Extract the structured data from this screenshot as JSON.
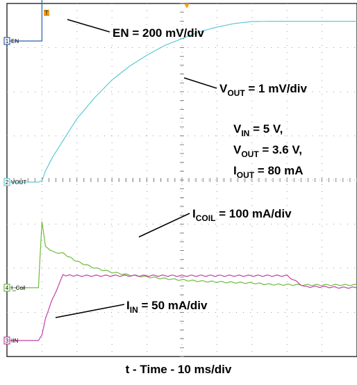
{
  "chart_data": {
    "type": "line",
    "title": "",
    "xlabel": "t - Time - 10 ms/div",
    "ylabel": "",
    "grid": true,
    "x": [
      0,
      0.5,
      0.9,
      1.0,
      1.1,
      1.3,
      1.6,
      2,
      2.5,
      3,
      3.5,
      4,
      4.5,
      5,
      5.5,
      6,
      6.5,
      7,
      7.5,
      8,
      8.5,
      9,
      9.5,
      10
    ],
    "series": [
      {
        "name": "EN",
        "channel": "1",
        "color": "#2a5fb0",
        "scale": "EN = 200 mV/div",
        "values": [
          0,
          0,
          0,
          1.6,
          1.6,
          1.6,
          1.6,
          1.6,
          1.6,
          1.6,
          1.6,
          1.6,
          1.6,
          1.6,
          1.6,
          1.6,
          1.6,
          1.6,
          1.6,
          1.6,
          1.6,
          1.6,
          1.6,
          1.6
        ]
      },
      {
        "name": "VOUT",
        "channel": "2",
        "color": "#5cc8d8",
        "scale": "VOUT = 1 mV/div",
        "values": [
          0,
          0,
          0,
          0.05,
          0.4,
          0.9,
          1.5,
          2.3,
          3.05,
          3.7,
          4.2,
          4.6,
          4.95,
          5.2,
          5.45,
          5.62,
          5.75,
          5.82,
          5.83,
          5.83,
          5.83,
          5.83,
          5.83,
          5.83
        ]
      },
      {
        "name": "ICOIL",
        "channel": "4",
        "color": "#6dbb3a",
        "scale": "ICOIL = 100 mA/div",
        "values": [
          0,
          0,
          0,
          2.4,
          1.5,
          1.3,
          1.25,
          0.95,
          0.72,
          0.56,
          0.46,
          0.39,
          0.33,
          0.28,
          0.24,
          0.21,
          0.19,
          0.17,
          0.12,
          0.11,
          0.1,
          0.1,
          0.1,
          0.1
        ]
      },
      {
        "name": "IIN",
        "channel": "3",
        "color": "#c040a8",
        "scale": "IN = 50 mA/div",
        "values": [
          0,
          0,
          0,
          0.2,
          0.8,
          1.5,
          2.37,
          2.35,
          2.35,
          2.35,
          2.35,
          2.35,
          2.35,
          2.35,
          2.35,
          2.35,
          2.35,
          2.35,
          2.35,
          2.35,
          1.95,
          1.95,
          1.92,
          1.92
        ]
      }
    ],
    "conditions": [
      "VIN = 5 V,",
      "VOUT = 3.6 V,",
      "IOUT = 80 mA"
    ]
  },
  "channel_tags": [
    {
      "num": "1",
      "name": "EN",
      "color": "#2a5fb0"
    },
    {
      "num": "2",
      "name": "VOUT",
      "color": "#5cc8d8"
    },
    {
      "num": "4",
      "name": "I_Coil",
      "color": "#6dbb3a"
    },
    {
      "num": "3",
      "name": "IIN",
      "color": "#c040a8"
    }
  ],
  "annotations": {
    "en": "EN = 200 mV/div",
    "vout_main": "V",
    "vout_sub": "OUT",
    "vout_rest": " = 1 mV/div",
    "vin_main": "V",
    "vin_sub": "IN",
    "vin_rest": " = 5 V,",
    "vout2_main": "V",
    "vout2_sub": "OUT",
    "vout2_rest": " = 3.6 V,",
    "iout_main": "I",
    "iout_sub": "OUT",
    "iout_rest": " = 80 mA",
    "icoil_main": "I",
    "icoil_sub": "COIL",
    "icoil_rest": " = 100 mA/div",
    "iin_main": "I",
    "iin_sub": "IN",
    "iin_rest": " = 50 mA/div"
  },
  "markers": {
    "trigger_pos": "T"
  }
}
